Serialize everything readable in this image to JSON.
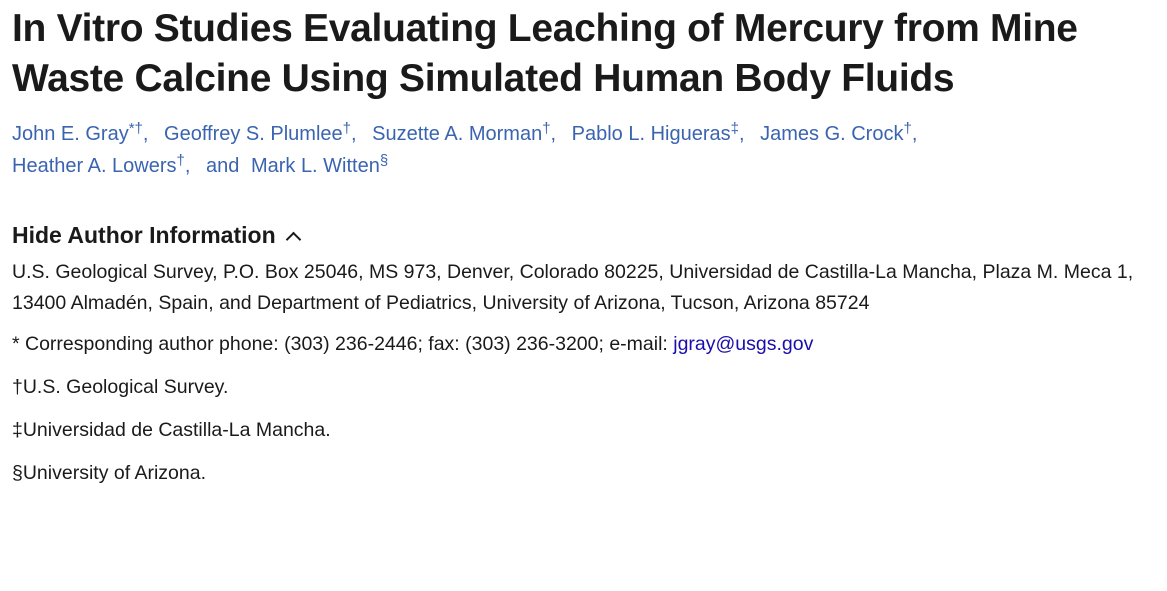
{
  "title": "In Vitro Studies Evaluating Leaching of Mercury from Mine Waste Calcine Using Simulated Human Body Fluids",
  "authors": [
    {
      "name": "John E. Gray",
      "mark": "*†"
    },
    {
      "name": "Geoffrey S. Plumlee",
      "mark": "†"
    },
    {
      "name": "Suzette A. Morman",
      "mark": "†"
    },
    {
      "name": "Pablo L. Higueras",
      "mark": "‡"
    },
    {
      "name": "James G. Crock",
      "mark": "†"
    },
    {
      "name": "Heather A. Lowers",
      "mark": "†"
    },
    {
      "name": "Mark L. Witten",
      "mark": "§"
    }
  ],
  "and_label": "and",
  "toggle_label": "Hide Author Information",
  "affiliation": "U.S. Geological Survey, P.O. Box 25046, MS 973, Denver, Colorado 80225, Universidad de Castilla-La Mancha, Plaza M. Meca 1, 13400 Almadén, Spain, and Department of Pediatrics, University of Arizona, Tucson, Arizona 85724",
  "corresponding": {
    "text": "* Corresponding author phone: (303) 236-2446; fax: (303) 236-3200; e-mail: ",
    "email": "jgray@usgs.gov"
  },
  "footnotes": [
    "†U.S. Geological Survey.",
    "‡Universidad de Castilla-La Mancha.",
    "§University of Arizona."
  ],
  "colors": {
    "author_link": "#3a64b0",
    "email_link": "#1a0dab",
    "text": "#1a1a1a"
  }
}
